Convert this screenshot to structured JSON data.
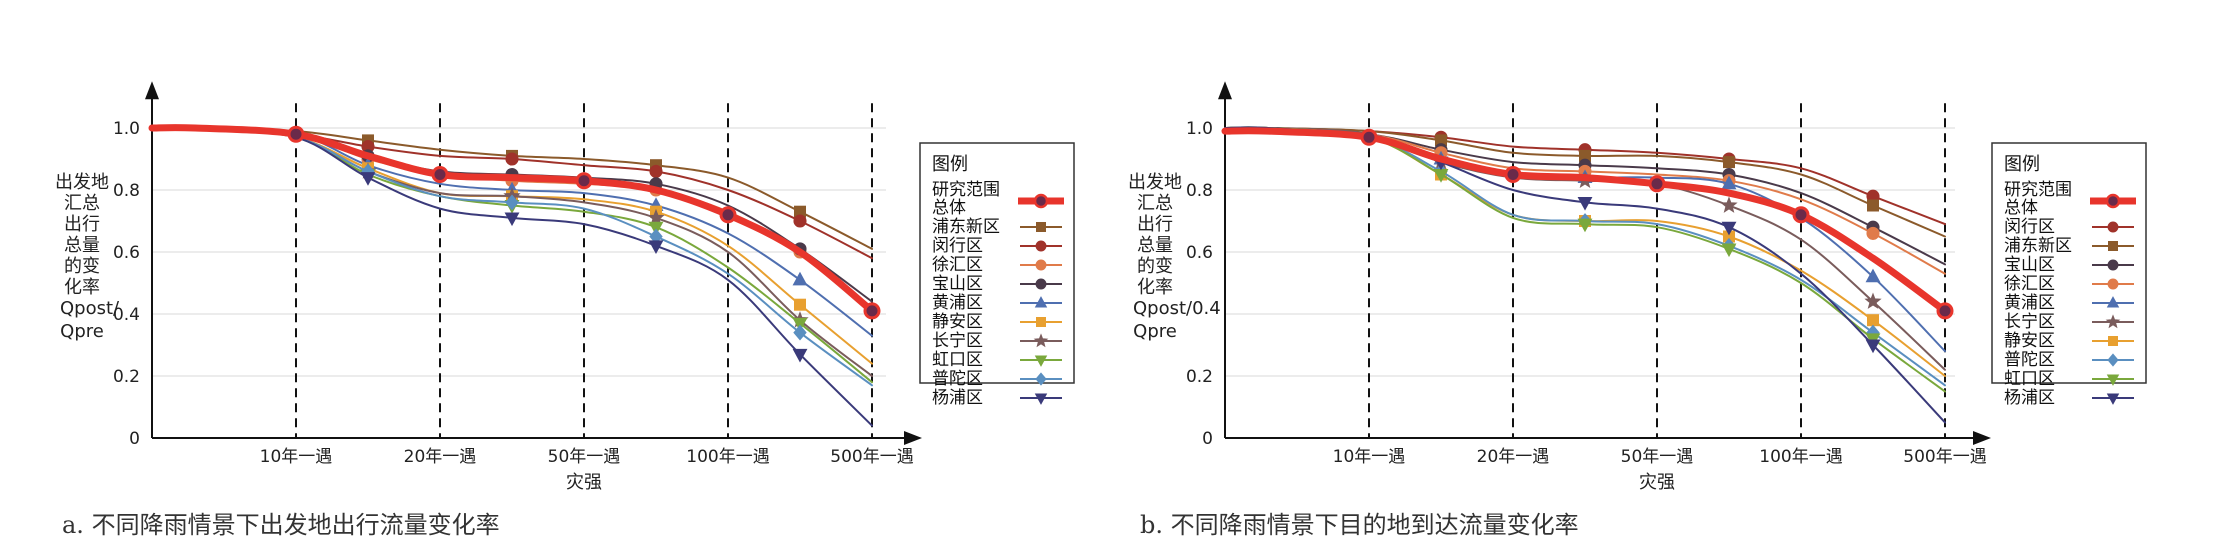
{
  "chart_data": [
    {
      "type": "line",
      "panel_caption": "a. 不同降雨情景下出发地出行流量变化率",
      "xlabel": "灾强",
      "ylabel": [
        "出发地",
        "汇总",
        "出行",
        "总量",
        "的变",
        "化率"
      ],
      "ylabel_ratio": [
        "Qpost/",
        "Qpre"
      ],
      "yticks": [
        "0",
        "0.2",
        "0.4",
        "0.6",
        "0.8",
        "1.0"
      ],
      "xticks": [
        "10年一遇",
        "20年一遇",
        "50年一遇",
        "100年一遇",
        "500年一遇"
      ],
      "ylim": [
        0,
        1.1
      ],
      "legend_title": "图例",
      "legend_position": "right",
      "x": [
        0,
        0.3,
        1,
        1.5,
        2,
        2.5,
        3,
        3.5,
        4,
        4.5,
        5
      ],
      "series": [
        {
          "name": "研究范围总体",
          "color": "#e8352c",
          "marker": "circle",
          "width": 7,
          "values": [
            1.0,
            1.0,
            0.98,
            0.91,
            0.85,
            0.84,
            0.83,
            0.8,
            0.72,
            0.6,
            0.41
          ]
        },
        {
          "name": "浦东新区",
          "color": "#8b5a2b",
          "marker": "square",
          "width": 2,
          "values": [
            1.0,
            1.0,
            0.99,
            0.96,
            0.93,
            0.91,
            0.9,
            0.88,
            0.84,
            0.73,
            0.61
          ]
        },
        {
          "name": "闵行区",
          "color": "#a0322a",
          "marker": "circle",
          "width": 2,
          "values": [
            1.0,
            1.0,
            0.98,
            0.94,
            0.91,
            0.9,
            0.88,
            0.86,
            0.8,
            0.7,
            0.58
          ]
        },
        {
          "name": "徐汇区",
          "color": "#e07b4a",
          "marker": "circle",
          "width": 2,
          "values": [
            1.0,
            1.0,
            0.98,
            0.9,
            0.85,
            0.83,
            0.82,
            0.8,
            0.73,
            0.6,
            0.42
          ]
        },
        {
          "name": "宝山区",
          "color": "#4a3a4a",
          "marker": "circle",
          "width": 2,
          "values": [
            1.0,
            1.0,
            0.98,
            0.91,
            0.86,
            0.85,
            0.84,
            0.82,
            0.75,
            0.61,
            0.44
          ]
        },
        {
          "name": "黄浦区",
          "color": "#4f6fb0",
          "marker": "triangle",
          "width": 2,
          "values": [
            1.0,
            1.0,
            0.98,
            0.88,
            0.82,
            0.8,
            0.79,
            0.75,
            0.66,
            0.51,
            0.33
          ]
        },
        {
          "name": "静安区",
          "color": "#e8a030",
          "marker": "square",
          "width": 2,
          "values": [
            1.0,
            1.0,
            0.97,
            0.87,
            0.79,
            0.78,
            0.77,
            0.73,
            0.62,
            0.43,
            0.24
          ]
        },
        {
          "name": "长宁区",
          "color": "#7a5c5c",
          "marker": "star",
          "width": 2,
          "values": [
            1.0,
            1.0,
            0.97,
            0.86,
            0.79,
            0.78,
            0.76,
            0.71,
            0.6,
            0.38,
            0.2
          ]
        },
        {
          "name": "虹口区",
          "color": "#7aa83c",
          "marker": "triangle-down",
          "width": 2,
          "values": [
            1.0,
            1.0,
            0.97,
            0.85,
            0.78,
            0.75,
            0.73,
            0.68,
            0.55,
            0.37,
            0.18
          ]
        },
        {
          "name": "普陀区",
          "color": "#5a8fc0",
          "marker": "diamond",
          "width": 2,
          "values": [
            1.0,
            1.0,
            0.97,
            0.86,
            0.78,
            0.76,
            0.74,
            0.65,
            0.53,
            0.34,
            0.17
          ]
        },
        {
          "name": "杨浦区",
          "color": "#3a3a7a",
          "marker": "triangle-down",
          "width": 2,
          "values": [
            1.0,
            1.0,
            0.97,
            0.84,
            0.74,
            0.71,
            0.69,
            0.62,
            0.51,
            0.27,
            0.04
          ]
        }
      ]
    },
    {
      "type": "line",
      "panel_caption": "b. 不同降雨情景下目的地到达流量变化率",
      "xlabel": "灾强",
      "ylabel": [
        "出发地",
        "汇总",
        "出行",
        "总量",
        "的变",
        "化率"
      ],
      "ylabel_ratio": [
        "Qpost/0.4",
        "Qpre"
      ],
      "yticks": [
        "0",
        "0.2",
        "",
        "0.6",
        "0.8",
        "1.0"
      ],
      "xticks": [
        "10年一遇",
        "20年一遇",
        "50年一遇",
        "100年一遇",
        "500年一遇"
      ],
      "ylim": [
        0,
        1.1
      ],
      "legend_title": "图例",
      "legend_position": "right",
      "x": [
        0,
        0.3,
        1,
        1.5,
        2,
        2.5,
        3,
        3.5,
        4,
        4.5,
        5
      ],
      "series": [
        {
          "name": "研究范围总体",
          "color": "#e8352c",
          "marker": "circle",
          "width": 7,
          "values": [
            0.99,
            0.99,
            0.97,
            0.9,
            0.85,
            0.84,
            0.82,
            0.79,
            0.72,
            0.58,
            0.41
          ]
        },
        {
          "name": "闵行区",
          "color": "#a0322a",
          "marker": "circle",
          "width": 2,
          "values": [
            1.0,
            1.0,
            0.99,
            0.97,
            0.94,
            0.93,
            0.92,
            0.9,
            0.87,
            0.78,
            0.69
          ]
        },
        {
          "name": "浦东新区",
          "color": "#8b5a2b",
          "marker": "square",
          "width": 2,
          "values": [
            1.0,
            1.0,
            0.99,
            0.96,
            0.92,
            0.91,
            0.91,
            0.89,
            0.85,
            0.75,
            0.65
          ]
        },
        {
          "name": "宝山区",
          "color": "#4a3a4a",
          "marker": "circle",
          "width": 2,
          "values": [
            1.0,
            1.0,
            0.98,
            0.93,
            0.89,
            0.88,
            0.87,
            0.85,
            0.79,
            0.68,
            0.56
          ]
        },
        {
          "name": "徐汇区",
          "color": "#e07b4a",
          "marker": "circle",
          "width": 2,
          "values": [
            1.0,
            1.0,
            0.98,
            0.92,
            0.87,
            0.86,
            0.85,
            0.83,
            0.77,
            0.66,
            0.53
          ]
        },
        {
          "name": "黄浦区",
          "color": "#4f6fb0",
          "marker": "triangle",
          "width": 2,
          "values": [
            1.0,
            1.0,
            0.98,
            0.9,
            0.85,
            0.84,
            0.84,
            0.82,
            0.71,
            0.52,
            0.28
          ]
        },
        {
          "name": "长宁区",
          "color": "#7a5c5c",
          "marker": "star",
          "width": 2,
          "values": [
            1.0,
            1.0,
            0.98,
            0.89,
            0.84,
            0.83,
            0.82,
            0.75,
            0.64,
            0.44,
            0.22
          ]
        },
        {
          "name": "静安区",
          "color": "#e8a030",
          "marker": "square",
          "width": 2,
          "values": [
            1.0,
            1.0,
            0.97,
            0.85,
            0.72,
            0.7,
            0.7,
            0.65,
            0.54,
            0.38,
            0.2
          ]
        },
        {
          "name": "普陀区",
          "color": "#5a8fc0",
          "marker": "diamond",
          "width": 2,
          "values": [
            1.0,
            1.0,
            0.97,
            0.86,
            0.72,
            0.7,
            0.69,
            0.62,
            0.51,
            0.34,
            0.17
          ]
        },
        {
          "name": "虹口区",
          "color": "#7aa83c",
          "marker": "triangle-down",
          "width": 2,
          "values": [
            1.0,
            1.0,
            0.97,
            0.85,
            0.71,
            0.69,
            0.68,
            0.61,
            0.5,
            0.32,
            0.15
          ]
        },
        {
          "name": "杨浦区",
          "color": "#3a3a7a",
          "marker": "triangle-down",
          "width": 2,
          "values": [
            1.0,
            1.0,
            0.97,
            0.89,
            0.8,
            0.76,
            0.74,
            0.68,
            0.53,
            0.3,
            0.05
          ]
        }
      ]
    }
  ]
}
